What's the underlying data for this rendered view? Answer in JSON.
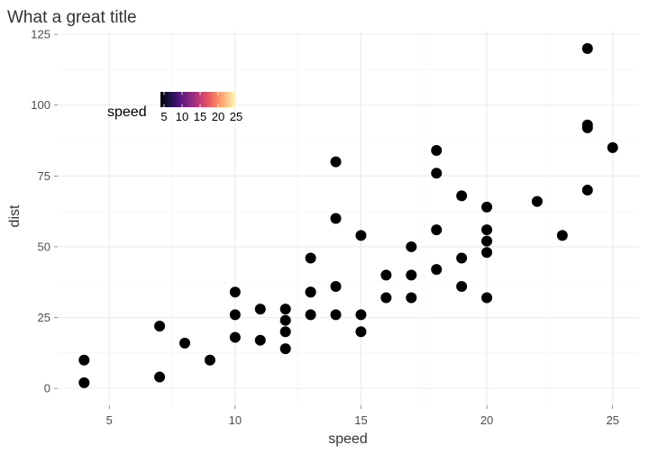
{
  "chart_data": {
    "type": "scatter",
    "title": "What a great title",
    "xlabel": "speed",
    "ylabel": "dist",
    "xlim": [
      2.95,
      26.05
    ],
    "ylim": [
      -6,
      126
    ],
    "x_ticks": [
      5,
      10,
      15,
      20,
      25
    ],
    "y_ticks": [
      0,
      25,
      50,
      75,
      100,
      125
    ],
    "x_minor_ticks": [
      7.5,
      12.5,
      17.5,
      22.5
    ],
    "y_minor_ticks": [
      12.5,
      37.5,
      62.5,
      87.5,
      112.5
    ],
    "grid": true,
    "point_color": "#000000",
    "legend": {
      "title": "speed",
      "placement": "inside top-left",
      "type": "colorbar",
      "palette": "magma",
      "colors": [
        "#000004",
        "#1d1147",
        "#51127c",
        "#822681",
        "#b73779",
        "#e75263",
        "#fc8961",
        "#fec287",
        "#fcfdbf"
      ],
      "ticks": [
        5,
        10,
        15,
        20,
        25
      ],
      "range": [
        4,
        25
      ]
    },
    "series": [
      {
        "x": [
          4,
          4,
          7,
          7,
          8,
          9,
          10,
          10,
          10,
          11,
          11,
          12,
          12,
          12,
          12,
          13,
          13,
          13,
          13,
          14,
          14,
          14,
          14,
          15,
          15,
          15,
          16,
          16,
          17,
          17,
          17,
          18,
          18,
          18,
          18,
          19,
          19,
          19,
          20,
          20,
          20,
          20,
          20,
          22,
          23,
          24,
          24,
          24,
          24,
          25
        ],
        "y": [
          2,
          10,
          4,
          22,
          16,
          10,
          18,
          26,
          34,
          17,
          28,
          14,
          20,
          24,
          28,
          26,
          34,
          34,
          46,
          26,
          36,
          60,
          80,
          20,
          26,
          54,
          32,
          40,
          32,
          40,
          50,
          42,
          56,
          76,
          84,
          36,
          46,
          68,
          32,
          48,
          52,
          56,
          64,
          66,
          54,
          70,
          92,
          93,
          120,
          85
        ]
      }
    ]
  }
}
